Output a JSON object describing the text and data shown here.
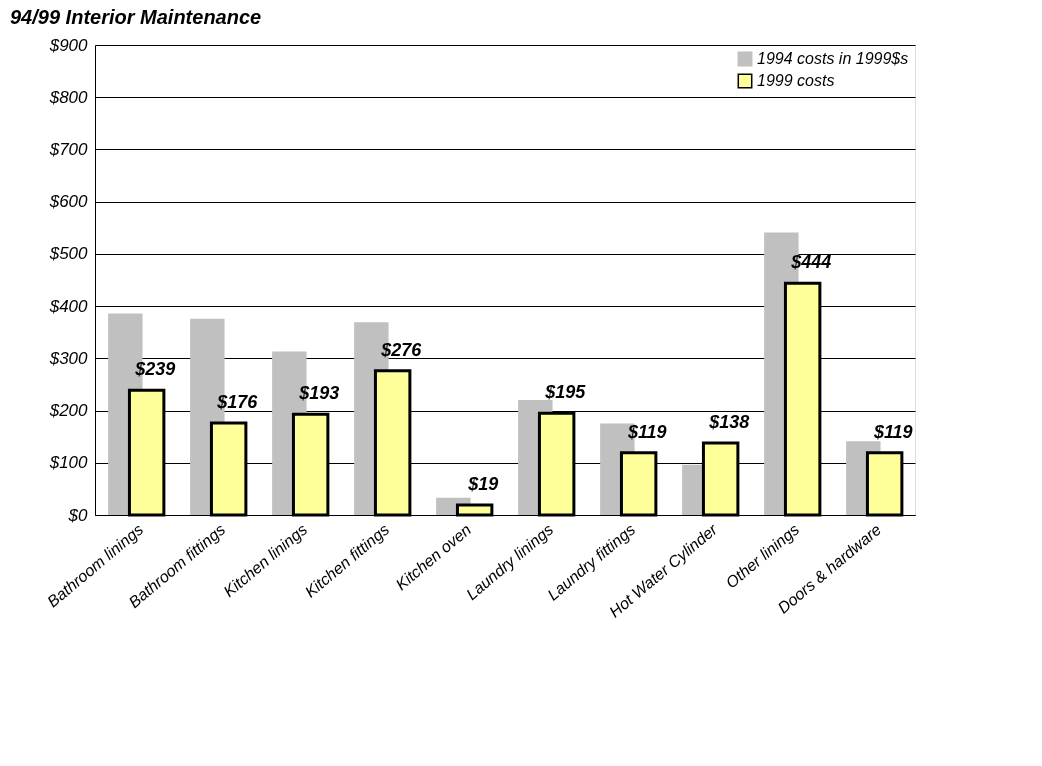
{
  "chart_data": {
    "type": "bar",
    "title": "94/99 Interior Maintenance",
    "categories": [
      "Bathroom linings",
      "Bathroom fittings",
      "Kitchen linings",
      "Kitchen fittings",
      "Kitchen oven",
      "Laundry linings",
      "Laundry fittings",
      "Hot Water Cylinder",
      "Other linings",
      "Doors & hardware"
    ],
    "series": [
      {
        "name": "1994 costs in 1999$s",
        "color": "#c0c0c0",
        "values": [
          386,
          376,
          313,
          369,
          33,
          220,
          175,
          96,
          541,
          141
        ]
      },
      {
        "name": "1999 costs",
        "color": "#ffff99",
        "values": [
          239,
          176,
          193,
          276,
          19,
          195,
          119,
          138,
          444,
          119
        ],
        "value_labels": [
          "$239",
          "$176",
          "$193",
          "$276",
          "$19",
          "$195",
          "$119",
          "$138",
          "$444",
          "$119"
        ]
      }
    ],
    "ylim": [
      0,
      900
    ],
    "yticks": [
      {
        "value": 0,
        "label": "$0"
      },
      {
        "value": 100,
        "label": "$100"
      },
      {
        "value": 200,
        "label": "$200"
      },
      {
        "value": 300,
        "label": "$300"
      },
      {
        "value": 400,
        "label": "$400"
      },
      {
        "value": 500,
        "label": "$500"
      },
      {
        "value": 600,
        "label": "$600"
      },
      {
        "value": 700,
        "label": "$700"
      },
      {
        "value": 800,
        "label": "$800"
      },
      {
        "value": 900,
        "label": "$900"
      }
    ],
    "grid": "y",
    "legend": "top right"
  }
}
